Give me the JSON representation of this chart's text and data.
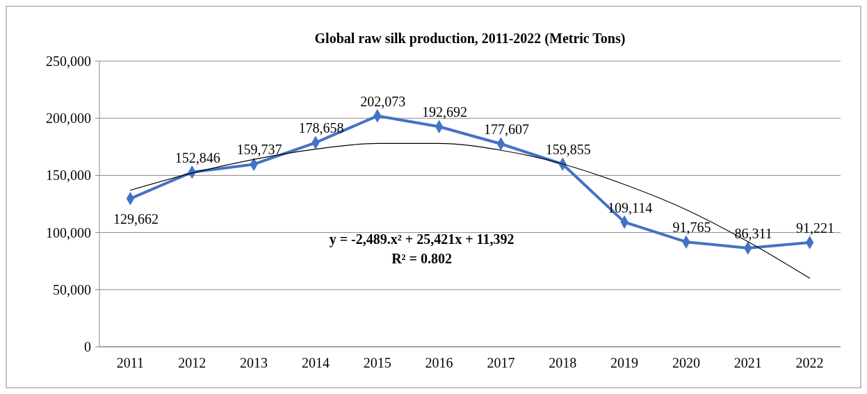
{
  "chart_data": {
    "type": "line",
    "title": "Global raw silk production, 2011-2022 (Metric Tons)",
    "categories": [
      "2011",
      "2012",
      "2013",
      "2014",
      "2015",
      "2016",
      "2017",
      "2018",
      "2019",
      "2020",
      "2021",
      "2022"
    ],
    "series": [
      {
        "color": "#4472c4",
        "marker": "diamond",
        "values": [
          129662,
          152846,
          159737,
          178658,
          202073,
          192692,
          177607,
          159855,
          109114,
          91765,
          86311,
          91221
        ],
        "value_labels": [
          "129,662",
          "152,846",
          "159,737",
          "178,658",
          "202,073",
          "192,692",
          "177,607",
          "159,855",
          "109,114",
          "91,765",
          "86,311",
          "91,221"
        ]
      },
      {
        "type": "line",
        "color": "#000000",
        "marker": "none",
        "values": [
          137000,
          152000,
          164000,
          173000,
          178000,
          178000,
          172000,
          160000,
          142000,
          120000,
          92000,
          60000
        ]
      }
    ],
    "ylim": [
      0,
      250000
    ],
    "yticks": [
      {
        "value": 0,
        "label": "0"
      },
      {
        "value": 50000,
        "label": "50,000"
      },
      {
        "value": 100000,
        "label": "100,000"
      },
      {
        "value": 150000,
        "label": "150,000"
      },
      {
        "value": 200000,
        "label": "200,000"
      },
      {
        "value": 250000,
        "label": "250,000"
      }
    ],
    "grid": "y",
    "annotations": [
      "y = -2,489.x² + 25,421x + 11,392",
      "R² = 0.802"
    ]
  }
}
